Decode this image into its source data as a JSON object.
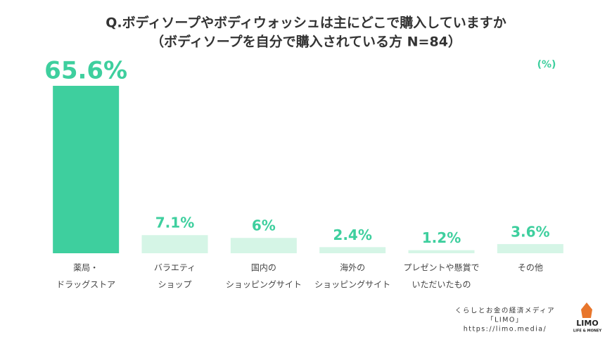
{
  "chart_data": {
    "type": "bar",
    "title": "Q.ボディソープやボディウォッシュは主にどこで購入していますか",
    "subtitle": "（ボディソープを自分で購入されている方 N=84）",
    "unit_label": "(%)",
    "categories": [
      [
        "薬局・",
        "ドラッグストア"
      ],
      [
        "バラエティ",
        "ショップ"
      ],
      [
        "国内の",
        "ショッピングサイト"
      ],
      [
        "海外の",
        "ショッピングサイト"
      ],
      [
        "プレゼントや懸賞で",
        "いただいたもの"
      ],
      [
        "その他"
      ]
    ],
    "values": [
      65.6,
      7.1,
      6,
      2.4,
      1.2,
      3.6
    ],
    "value_labels": [
      "65.6%",
      "7.1%",
      "6%",
      "2.4%",
      "1.2%",
      "3.6%"
    ],
    "colors": [
      "#3ecf9e",
      "#d5f5e6",
      "#d5f5e6",
      "#d5f5e6",
      "#d5f5e6",
      "#d5f5e6"
    ],
    "label_color": "#3ecf9e",
    "ylim": [
      0,
      70
    ]
  },
  "footer": {
    "tagline": "くらしとお金の経済メディア",
    "brand": "「LIMO」",
    "url": "https://limo.media/",
    "logo": "LIMO",
    "logo_sub": "LIFE & MONEY"
  }
}
